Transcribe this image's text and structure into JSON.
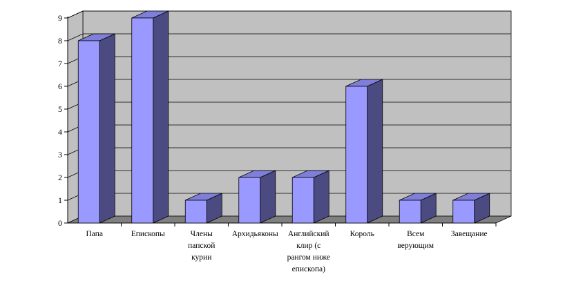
{
  "chart_data": {
    "type": "bar",
    "style": "3d-column",
    "categories": [
      [
        "Папа"
      ],
      [
        "Епископы"
      ],
      [
        "Члены",
        "папской",
        "курии"
      ],
      [
        "Архидьяконы"
      ],
      [
        "Английский",
        "клир (с",
        "рангом ниже",
        "епископа)"
      ],
      [
        "Король"
      ],
      [
        "Всем",
        "верующим"
      ],
      [
        "Завещание"
      ]
    ],
    "values": [
      8,
      9,
      1,
      2,
      2,
      6,
      1,
      1
    ],
    "ylim": [
      0,
      9
    ],
    "yticks": [
      "0",
      "1",
      "2",
      "3",
      "4",
      "5",
      "6",
      "7",
      "8",
      "9"
    ],
    "grid": true,
    "legend": "none",
    "colors": {
      "bar_front": "#9999ff",
      "bar_side": "#4b4b82",
      "bar_top": "#7f7fd9",
      "wall": "#c0c0c0",
      "floor": "#808080"
    }
  }
}
